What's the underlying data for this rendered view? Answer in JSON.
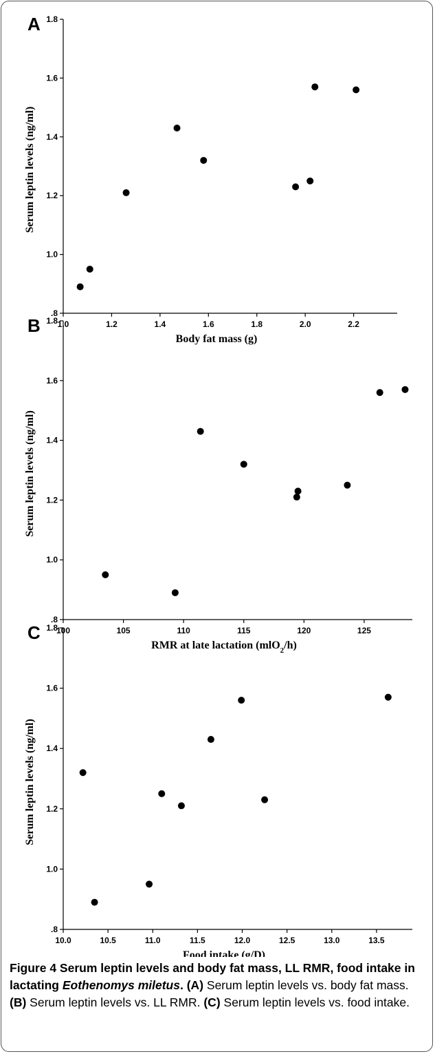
{
  "chart_data": [
    {
      "type": "scatter",
      "panel": "A",
      "xlabel": "Body fat mass (g)",
      "ylabel": "Serum leptin levels (ng/ml)",
      "xlim": [
        1.0,
        2.38
      ],
      "ylim": [
        0.8,
        1.8
      ],
      "xticks": [
        1.0,
        1.2,
        1.4,
        1.6,
        1.8,
        2.0,
        2.2
      ],
      "xtick_labels": [
        "1.0",
        "1.2",
        "1.4",
        "1.6",
        "1.8",
        "2.0",
        "2.2"
      ],
      "yticks": [
        0.8,
        1.0,
        1.2,
        1.4,
        1.6,
        1.8
      ],
      "ytick_labels": [
        ".8",
        "1.0",
        "1.2",
        "1.4",
        "1.6",
        "1.8"
      ],
      "grid": false,
      "x": [
        1.07,
        1.11,
        1.26,
        1.47,
        1.58,
        1.96,
        2.02,
        2.04,
        2.21
      ],
      "y": [
        0.89,
        0.95,
        1.21,
        1.43,
        1.32,
        1.23,
        1.25,
        1.57,
        1.56
      ]
    },
    {
      "type": "scatter",
      "panel": "B",
      "xlabel": "RMR at late lactation (mlO",
      "xlabel_sub": "2",
      "xlabel_tail": "/h)",
      "ylabel": "Serum leptin levels (ng/ml)",
      "xlim": [
        100,
        129
      ],
      "ylim": [
        0.8,
        1.8
      ],
      "xticks": [
        100,
        105,
        110,
        115,
        120,
        125
      ],
      "xtick_labels": [
        "100",
        "105",
        "110",
        "115",
        "120",
        "125"
      ],
      "yticks": [
        0.8,
        1.0,
        1.2,
        1.4,
        1.6,
        1.8
      ],
      "ytick_labels": [
        ".8",
        "1.0",
        "1.2",
        "1.4",
        "1.6",
        "1.8"
      ],
      "grid": false,
      "x": [
        103.5,
        109.3,
        111.4,
        115.0,
        119.4,
        119.5,
        123.6,
        126.3,
        128.4
      ],
      "y": [
        0.95,
        0.89,
        1.43,
        1.32,
        1.21,
        1.23,
        1.25,
        1.56,
        1.57
      ]
    },
    {
      "type": "scatter",
      "panel": "C",
      "xlabel": "Food intake (g/D)",
      "ylabel": "Serum leptin levels (ng/ml)",
      "xlim": [
        10.0,
        13.9
      ],
      "ylim": [
        0.8,
        1.8
      ],
      "xticks": [
        10.0,
        10.5,
        11.0,
        11.5,
        12.0,
        12.5,
        13.0,
        13.5
      ],
      "xtick_labels": [
        "10.0",
        "10.5",
        "11.0",
        "11.5",
        "12.0",
        "12.5",
        "13.0",
        "13.5"
      ],
      "yticks": [
        0.8,
        1.0,
        1.2,
        1.4,
        1.6,
        1.8
      ],
      "ytick_labels": [
        ".8",
        "1.0",
        "1.2",
        "1.4",
        "1.6",
        "1.8"
      ],
      "grid": false,
      "x": [
        10.22,
        10.35,
        10.96,
        11.1,
        11.32,
        11.65,
        11.99,
        12.25,
        13.63
      ],
      "y": [
        1.32,
        0.89,
        0.95,
        1.25,
        1.21,
        1.43,
        1.56,
        1.23,
        1.57
      ]
    }
  ],
  "caption": {
    "title": "Figure 4 Serum leptin levels and body fat mass, LL RMR, food intake in lactating ",
    "species": "Eothenomys miletus",
    "title_end": ".",
    "a_label": "(A)",
    "a_text": " Serum leptin levels vs. body fat mass. ",
    "b_label": "(B)",
    "b_text": " Serum leptin levels vs. LL RMR. ",
    "c_label": "(C)",
    "c_text": " Serum leptin levels vs. food intake."
  },
  "colors": {
    "marker": "#000000",
    "axis": "#000000",
    "frame_border": "#555555"
  }
}
